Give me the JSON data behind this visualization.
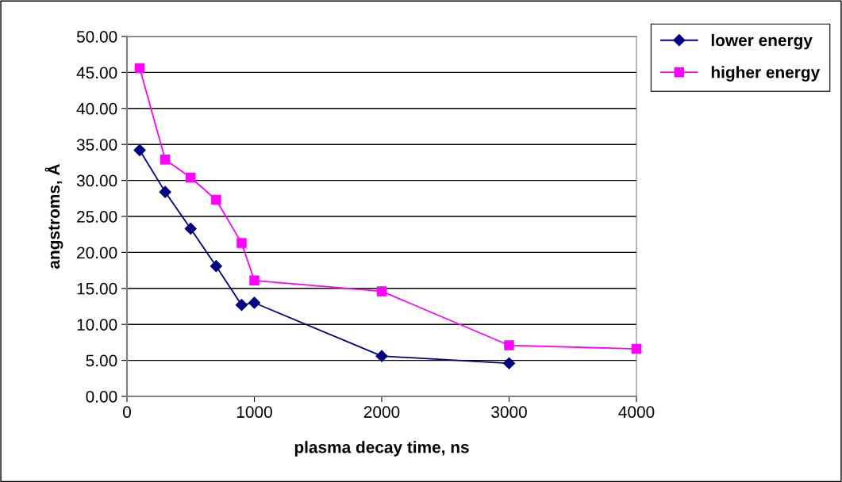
{
  "chart_data": {
    "type": "line",
    "xlabel": "plasma decay time, ns",
    "ylabel": "angstroms, Å",
    "xlim": [
      0,
      4000
    ],
    "xticks": [
      0,
      1000,
      2000,
      3000,
      4000
    ],
    "ylim": [
      0,
      50
    ],
    "yticks": [
      {
        "value": 0,
        "label": "0.00"
      },
      {
        "value": 5,
        "label": "5.00"
      },
      {
        "value": 10,
        "label": "10.00"
      },
      {
        "value": 15,
        "label": "15.00"
      },
      {
        "value": 20,
        "label": "20.00"
      },
      {
        "value": 25,
        "label": "25.00"
      },
      {
        "value": 30,
        "label": "30.00"
      },
      {
        "value": 35,
        "label": "35.00"
      },
      {
        "value": 40,
        "label": "40.00"
      },
      {
        "value": 45,
        "label": "45.00"
      },
      {
        "value": 50,
        "label": "50.00"
      }
    ],
    "grid": "y",
    "legend": "top right",
    "series": [
      {
        "name": "lower energy",
        "color": "#000080",
        "marker": "diamond",
        "x": [
          100,
          300,
          500,
          700,
          900,
          1000,
          2000,
          3000
        ],
        "values": [
          34.2,
          28.4,
          23.3,
          18.1,
          12.7,
          13.0,
          5.6,
          4.6
        ]
      },
      {
        "name": "higher energy",
        "color": "#ff00ff",
        "marker": "square",
        "x": [
          100,
          300,
          500,
          700,
          900,
          1000,
          2000,
          3000,
          4000
        ],
        "values": [
          45.6,
          32.9,
          30.4,
          27.3,
          21.3,
          16.1,
          14.6,
          7.1,
          6.6
        ]
      }
    ]
  }
}
